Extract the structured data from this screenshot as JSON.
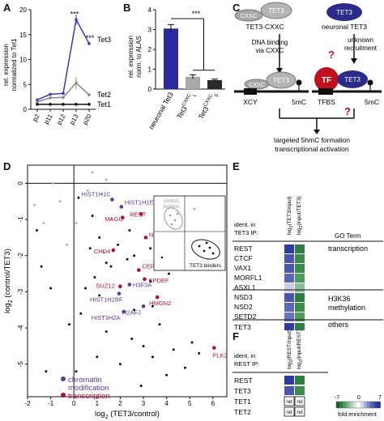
{
  "panels": {
    "A": "A",
    "B": "B",
    "C": "C",
    "D": "D",
    "E": "E",
    "F": "F"
  },
  "panel_a": {
    "ylabel": "rel. expression normalized to Tet1",
    "yticks": [
      "0",
      "5",
      "10",
      "15",
      "20"
    ],
    "chart_data": {
      "type": "line",
      "categories": [
        "p2",
        "p11",
        "p12",
        "p13",
        "p20"
      ],
      "ylim": [
        0,
        20
      ],
      "series": [
        {
          "name": "Tet3",
          "color": "#3a3ab0",
          "values": [
            1.9,
            3.0,
            3.2,
            18.0,
            13.2
          ]
        },
        {
          "name": "Tet2",
          "color": "#888888",
          "values": [
            1.5,
            2.3,
            2.4,
            5.3,
            2.9
          ]
        },
        {
          "name": "Tet1",
          "color": "#111111",
          "values": [
            1.0,
            1.0,
            1.0,
            1.0,
            1.0
          ]
        }
      ],
      "annotations": [
        "***",
        "***"
      ]
    }
  },
  "panel_b": {
    "ylabel": "rel. expression norm. to ALAS",
    "yticks": [
      "0",
      "1",
      "2",
      "3",
      "4"
    ],
    "sig": "***",
    "chart_data": {
      "type": "bar",
      "categories": [
        "neuronal Tet3",
        "Tet3CXXC L",
        "Tet3CXXC S"
      ],
      "values": [
        3.05,
        0.62,
        0.45
      ],
      "errors": [
        0.2,
        0.1,
        0.05
      ],
      "colors": [
        "#2b2b9e",
        "#a8a8a8",
        "#2a2a2a"
      ],
      "ylim": [
        0,
        4
      ]
    },
    "xlabels": [
      {
        "base": "neuronal Tet3",
        "sup": ""
      },
      {
        "base": "Tet3",
        "sup": "CXXC",
        "sub": "L"
      },
      {
        "base": "Tet3",
        "sup": "CXXC",
        "sub": "S"
      }
    ]
  },
  "panel_c": {
    "left_title": "TET3-CXXC",
    "right_title": "neuronal TET3",
    "cxxc": "CXXC",
    "tet3": "TET3",
    "tf": "TF",
    "left_arrow": "DNA binding via CXXC",
    "left_arrow_1": "DNA binding",
    "left_arrow_2": "via CXXC",
    "right_arrow_1": "unknown",
    "right_arrow_2": "recruitment",
    "xcy": "XCY",
    "mc_left": "5mC",
    "tfbs": "TFBS",
    "mc_right": "5mC",
    "question": "?",
    "bottom_1": "targeted 5hmC formation",
    "bottom_2": "transcriptional activation"
  },
  "panel_d": {
    "xlabel_pre": "log",
    "xlabel_sub": "2",
    "xlabel_post": " (TET3/control)",
    "ylabel_pre": "log",
    "ylabel_sub": "2",
    "ylabel_post": " (control/TET3)",
    "xticks": [
      "-2",
      "-1",
      "0",
      "1",
      "2",
      "3",
      "4",
      "5",
      "6"
    ],
    "yticks": [
      "0",
      "-1",
      "-2",
      "-3",
      "-4",
      "-5"
    ],
    "inset_control": "control binders",
    "inset_tet3": "TET3 binders",
    "legend_chromatin_1": "chromatin",
    "legend_chromatin_2": "modification",
    "legend_transcription": "transcription",
    "chromatin_color": "#5a3a9a",
    "transcription_color": "#b01030",
    "labeled_points": [
      {
        "name": "HIST1H1C",
        "x": 1.65,
        "y": -0.45,
        "cls": "chromatin"
      },
      {
        "name": "HIST1H1E",
        "x": 2.05,
        "y": -0.65,
        "cls": "chromatin"
      },
      {
        "name": "REST",
        "x": 2.9,
        "y": -0.85,
        "cls": "transcription"
      },
      {
        "name": "MAGI2",
        "x": 2.1,
        "y": -0.95,
        "cls": "transcription"
      },
      {
        "name": "NOLC1",
        "x": 3.1,
        "y": -1.5,
        "cls": "transcription"
      },
      {
        "name": "CHD4",
        "x": 1.7,
        "y": -1.85,
        "cls": "transcription"
      },
      {
        "name": "CEP290",
        "x": 2.8,
        "y": -2.4,
        "cls": "transcription"
      },
      {
        "name": "SPDEF",
        "x": 3.05,
        "y": -2.65,
        "cls": "transcription"
      },
      {
        "name": "H3F3A",
        "x": 2.4,
        "y": -2.8,
        "cls": "chromatin"
      },
      {
        "name": "SUZ12",
        "x": 2.0,
        "y": -2.85,
        "cls": "transcription"
      },
      {
        "name": "HIST1H2BF",
        "x": 1.95,
        "y": -3.05,
        "cls": "chromatin"
      },
      {
        "name": "HMGN2",
        "x": 3.6,
        "y": -3.15,
        "cls": "transcription"
      },
      {
        "name": "H2AFJ",
        "x": 3.0,
        "y": -3.4,
        "cls": "chromatin"
      },
      {
        "name": "HIST3H2A",
        "x": 2.15,
        "y": -3.55,
        "cls": "chromatin"
      },
      {
        "name": "PLK2",
        "x": 6.05,
        "y": -4.55,
        "cls": "transcription"
      }
    ],
    "chart_data": {
      "type": "scatter",
      "xlim": [
        -2,
        6.6
      ],
      "ylim": [
        -5.9,
        0.5
      ],
      "black_points": [
        [
          0.2,
          -0.4
        ],
        [
          0.8,
          -0.9
        ],
        [
          1.1,
          -1.5
        ],
        [
          1.4,
          -2.2
        ],
        [
          0.9,
          -2.6
        ],
        [
          1.6,
          -2.3
        ],
        [
          2.3,
          -2.1
        ],
        [
          2.6,
          -2.0
        ],
        [
          3.3,
          -1.8
        ],
        [
          3.5,
          -2.2
        ],
        [
          0.5,
          -2.9
        ],
        [
          1.1,
          -3.1
        ],
        [
          2.6,
          -3.5
        ],
        [
          3.4,
          -3.4
        ],
        [
          3.7,
          -3.9
        ],
        [
          0.3,
          -3.6
        ],
        [
          -0.2,
          -3.9
        ],
        [
          1.4,
          -4.1
        ],
        [
          2.5,
          -4.3
        ],
        [
          3.0,
          -4.5
        ],
        [
          3.4,
          -4.8
        ],
        [
          4.3,
          -4.6
        ],
        [
          5.1,
          -4.4
        ],
        [
          5.4,
          -4.7
        ],
        [
          4.8,
          -5.1
        ],
        [
          4.0,
          -5.3
        ],
        [
          1.0,
          -4.8
        ],
        [
          2.0,
          -5.0
        ],
        [
          0.1,
          -5.2
        ],
        [
          -1.6,
          -1.3
        ],
        [
          -1.4,
          -2.3
        ],
        [
          -1.0,
          -2.9
        ],
        [
          -1.2,
          -5.2
        ],
        [
          2.9,
          -5.6
        ],
        [
          3.3,
          -2.7
        ],
        [
          0.7,
          -1.8
        ],
        [
          1.9,
          -1.7
        ],
        [
          2.4,
          -1.3
        ],
        [
          3.6,
          -1.2
        ],
        [
          4.1,
          -2.5
        ]
      ],
      "grey_points": [
        [
          -1.7,
          -0.6
        ],
        [
          -1.3,
          -1.1
        ],
        [
          -0.6,
          -0.5
        ],
        [
          -0.3,
          -1.7
        ],
        [
          0.1,
          -1.1
        ],
        [
          1.6,
          -1.0
        ],
        [
          1.3,
          -1.9
        ],
        [
          0.6,
          -0.2
        ],
        [
          1.2,
          -0.3
        ],
        [
          0.8,
          0.3
        ],
        [
          1.4,
          0.1
        ],
        [
          -0.9,
          0.0
        ]
      ]
    }
  },
  "panel_e": {
    "header_ident_1": "ident. in",
    "header_ident_2": "TET3 IP:",
    "col1_label": "log2(TET3/input)",
    "col2_label": "log2(input/TET3)",
    "go_header": "GO Term",
    "rows": [
      {
        "name": "REST",
        "c1": "#2e3aa0",
        "c2": "#2f7d40"
      },
      {
        "name": "CTCF",
        "c1": "#4a55b0",
        "c2": "#3c8a4c"
      },
      {
        "name": "VAX1",
        "c1": "#4a55b0",
        "c2": "#3c8a4c"
      },
      {
        "name": "MORFL1",
        "c1": "#5a66b8",
        "c2": "#4d9a5a"
      },
      {
        "name": "ASXL1",
        "c1": "#c8cde8",
        "c2": "#8cc095"
      },
      {
        "name": "NSD3",
        "c1": "#4a55b0",
        "c2": "#2f7d40"
      },
      {
        "name": "NSD2",
        "c1": "#5a66b8",
        "c2": "#3c8a4c"
      },
      {
        "name": "SETD2",
        "c1": "#6a75c0",
        "c2": "#4d9a5a"
      },
      {
        "name": "TET3",
        "c1": "#2e3aa0",
        "c2": "#2f7d40"
      }
    ],
    "go_terms": [
      "transcription",
      "H3K36",
      "methylation",
      "others"
    ]
  },
  "panel_f": {
    "header_ident_1": "ident. in",
    "header_ident_2": "REST IP:",
    "col1_label": "log2(REST/input)",
    "col2_label": "log2(input/REST)",
    "rows": [
      {
        "name": "REST",
        "c1": "#2e3aa0",
        "c2": "#2f7d40",
        "nd": false
      },
      {
        "name": "TET3",
        "c1": "#4a55b0",
        "c2": "#3c8a4c",
        "nd": false
      },
      {
        "name": "TET1",
        "c1": "",
        "c2": "",
        "nd": true
      },
      {
        "name": "TET2",
        "c1": "",
        "c2": "",
        "nd": true
      }
    ],
    "nd_label": "nd",
    "scale_min": "-7",
    "scale_zero": "0",
    "scale_max": "7",
    "scale_label": "fold enrichment"
  }
}
